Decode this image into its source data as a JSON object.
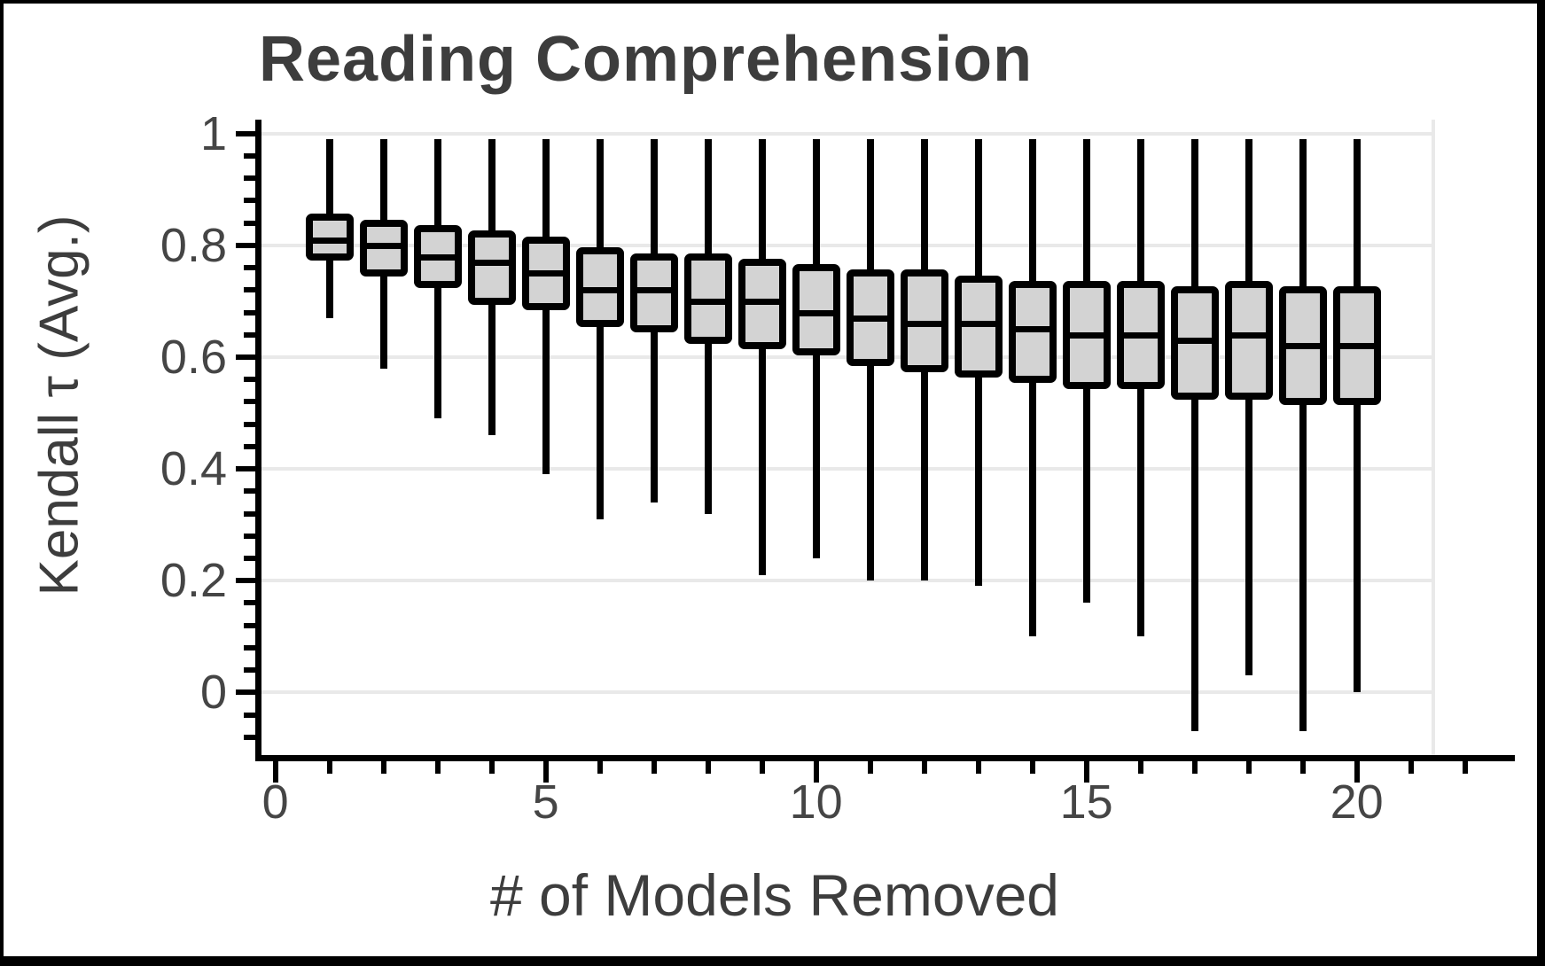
{
  "title": "Reading Comprehension",
  "colors": {
    "box_fill": "#d3d3d3",
    "box_border": "#000000",
    "gridline": "#e9e9e9",
    "text": "#3d3d3d",
    "tick_text": "#454545"
  },
  "chart_data": {
    "type": "boxplot",
    "title": "Reading Comprehension",
    "xlabel": "# of Models Removed",
    "ylabel": "Kendall τ (Avg.)",
    "grid": "horizontal",
    "legend": "none",
    "xlim": [
      -0.35,
      21.5
    ],
    "ylim": [
      -0.12,
      1.02
    ],
    "xticks_major": [
      0,
      5,
      10,
      15,
      20
    ],
    "xtick_labels": [
      "0",
      "5",
      "10",
      "15",
      "20"
    ],
    "xticks_minor_range": [
      1,
      22
    ],
    "yticks_major": [
      1,
      0.8,
      0.6,
      0.4,
      0.2,
      0
    ],
    "ytick_labels": [
      "1",
      "0.8",
      "0.6",
      "0.4",
      "0.2",
      "0"
    ],
    "ytick_minor_step": 0.04,
    "boxes": [
      {
        "x": 1,
        "whislo": 0.67,
        "q1": 0.78,
        "med": 0.81,
        "q3": 0.85,
        "whishi": 0.99
      },
      {
        "x": 2,
        "whislo": 0.58,
        "q1": 0.75,
        "med": 0.8,
        "q3": 0.84,
        "whishi": 0.99
      },
      {
        "x": 3,
        "whislo": 0.49,
        "q1": 0.73,
        "med": 0.78,
        "q3": 0.83,
        "whishi": 0.99
      },
      {
        "x": 4,
        "whislo": 0.46,
        "q1": 0.7,
        "med": 0.77,
        "q3": 0.82,
        "whishi": 0.99
      },
      {
        "x": 5,
        "whislo": 0.39,
        "q1": 0.69,
        "med": 0.75,
        "q3": 0.81,
        "whishi": 0.99
      },
      {
        "x": 6,
        "whislo": 0.31,
        "q1": 0.66,
        "med": 0.72,
        "q3": 0.79,
        "whishi": 0.99
      },
      {
        "x": 7,
        "whislo": 0.34,
        "q1": 0.65,
        "med": 0.72,
        "q3": 0.78,
        "whishi": 0.99
      },
      {
        "x": 8,
        "whislo": 0.32,
        "q1": 0.63,
        "med": 0.7,
        "q3": 0.78,
        "whishi": 0.99
      },
      {
        "x": 9,
        "whislo": 0.21,
        "q1": 0.62,
        "med": 0.7,
        "q3": 0.77,
        "whishi": 0.99
      },
      {
        "x": 10,
        "whislo": 0.24,
        "q1": 0.61,
        "med": 0.68,
        "q3": 0.76,
        "whishi": 0.99
      },
      {
        "x": 11,
        "whislo": 0.2,
        "q1": 0.59,
        "med": 0.67,
        "q3": 0.75,
        "whishi": 0.99
      },
      {
        "x": 12,
        "whislo": 0.2,
        "q1": 0.58,
        "med": 0.66,
        "q3": 0.75,
        "whishi": 0.99
      },
      {
        "x": 13,
        "whislo": 0.19,
        "q1": 0.57,
        "med": 0.66,
        "q3": 0.74,
        "whishi": 0.99
      },
      {
        "x": 14,
        "whislo": 0.1,
        "q1": 0.56,
        "med": 0.65,
        "q3": 0.73,
        "whishi": 0.99
      },
      {
        "x": 15,
        "whislo": 0.16,
        "q1": 0.55,
        "med": 0.64,
        "q3": 0.73,
        "whishi": 0.99
      },
      {
        "x": 16,
        "whislo": 0.1,
        "q1": 0.55,
        "med": 0.64,
        "q3": 0.73,
        "whishi": 0.99
      },
      {
        "x": 17,
        "whislo": -0.07,
        "q1": 0.53,
        "med": 0.63,
        "q3": 0.72,
        "whishi": 0.99
      },
      {
        "x": 18,
        "whislo": 0.03,
        "q1": 0.53,
        "med": 0.64,
        "q3": 0.73,
        "whishi": 0.99
      },
      {
        "x": 19,
        "whislo": -0.07,
        "q1": 0.52,
        "med": 0.62,
        "q3": 0.72,
        "whishi": 0.99
      },
      {
        "x": 20,
        "whislo": 0.0,
        "q1": 0.52,
        "med": 0.62,
        "q3": 0.72,
        "whishi": 0.99
      }
    ]
  }
}
